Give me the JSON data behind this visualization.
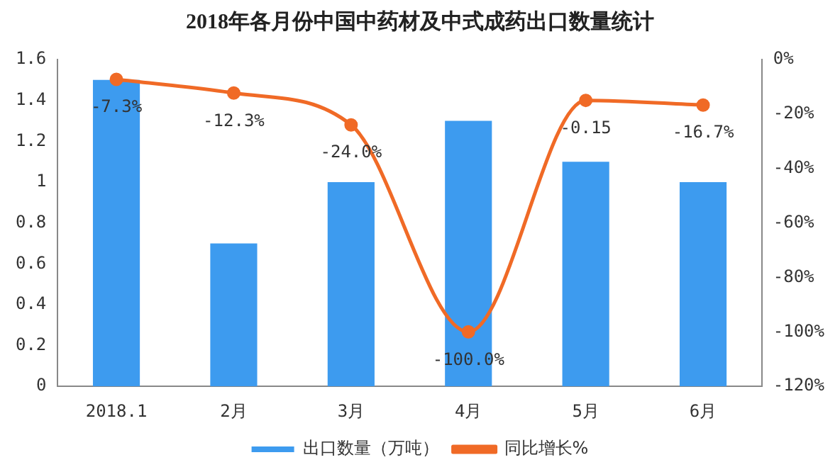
{
  "chart_data": {
    "type": "bar",
    "title": "2018年各月份中国中药材及中式成药出口数量统计",
    "categories": [
      "2018.1",
      "2月",
      "3月",
      "4月",
      "5月",
      "6月"
    ],
    "series": [
      {
        "name": "出口数量（万吨）",
        "color": "#3d9bef",
        "values": [
          1.5,
          0.7,
          1.0,
          1.3,
          1.1,
          1.0
        ]
      },
      {
        "name": "同比增长%",
        "type": "line",
        "axis": "y2",
        "color": "#f06a26",
        "values": [
          -7.3,
          -12.3,
          -24.0,
          -100.0,
          -15,
          -16.7
        ],
        "value_labels": [
          "-7.3%",
          "-12.3%",
          "-24.0%",
          "-100.0%",
          null,
          "-16.7%"
        ]
      }
    ],
    "annotations": [
      "-0.15"
    ],
    "ylim": [
      0,
      1.6
    ],
    "yticks": [
      0,
      0.2,
      0.4,
      0.6,
      0.8,
      1,
      1.2,
      1.4,
      1.6
    ],
    "y2lim": [
      -120,
      0
    ],
    "y2ticks": [
      {
        "value": -120,
        "label": "-120%"
      },
      {
        "value": -100,
        "label": "-100%"
      },
      {
        "value": -80,
        "label": "-80%"
      },
      {
        "value": -60,
        "label": "-60%"
      },
      {
        "value": -40,
        "label": "-40%"
      },
      {
        "value": -20,
        "label": "-20%"
      },
      {
        "value": 0,
        "label": "0%"
      }
    ],
    "grid": false,
    "legend": "bottom",
    "marker": "circle",
    "line_style": "solid"
  }
}
